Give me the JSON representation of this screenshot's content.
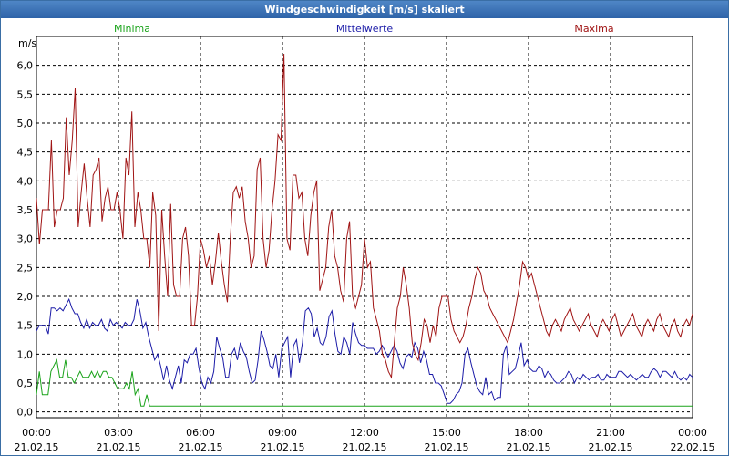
{
  "window": {
    "title": "Windgeschwindigkeit [m/s] skaliert"
  },
  "colors": {
    "minima": "#1aa31a",
    "mittelwerte": "#1c1ca8",
    "maxima": "#a01414",
    "grid": "#000000"
  },
  "chart_data": {
    "type": "line",
    "title": "Windgeschwindigkeit [m/s] skaliert",
    "ylabel": "m/s",
    "xlabel": "",
    "ylim": [
      -0.1,
      6.5
    ],
    "xlim": [
      0,
      24
    ],
    "yticks": [
      "0,0",
      "0,5",
      "1,0",
      "1,5",
      "2,0",
      "2,5",
      "3,0",
      "3,5",
      "4,0",
      "4,5",
      "5,0",
      "5,5",
      "6,0"
    ],
    "xticks": [
      {
        "time": "00:00",
        "date": "21.02.15"
      },
      {
        "time": "03:00",
        "date": "21.02.15"
      },
      {
        "time": "06:00",
        "date": "21.02.15"
      },
      {
        "time": "09:00",
        "date": "21.02.15"
      },
      {
        "time": "12:00",
        "date": "21.02.15"
      },
      {
        "time": "15:00",
        "date": "21.02.15"
      },
      {
        "time": "18:00",
        "date": "21.02.15"
      },
      {
        "time": "21:00",
        "date": "21.02.15"
      },
      {
        "time": "00:00",
        "date": "22.02.15"
      }
    ],
    "grid": true,
    "series": [
      {
        "name": "Minima",
        "key": "minima",
        "legend_pos": "left",
        "values": [
          0.3,
          0.7,
          0.3,
          0.3,
          0.3,
          0.7,
          0.8,
          0.9,
          0.6,
          0.6,
          0.9,
          0.6,
          0.6,
          0.5,
          0.6,
          0.7,
          0.6,
          0.6,
          0.6,
          0.7,
          0.6,
          0.7,
          0.6,
          0.7,
          0.7,
          0.6,
          0.6,
          0.5,
          0.4,
          0.4,
          0.4,
          0.5,
          0.4,
          0.7,
          0.3,
          0.4,
          0.1,
          0.1,
          0.3,
          0.1,
          0.1,
          0.1,
          0.1,
          0.1,
          0.1,
          0.1,
          0.1,
          0.1,
          0.1,
          0.1,
          0.1,
          0.1,
          0.1,
          0.1,
          0.1,
          0.1,
          0.1,
          0.1,
          0.1,
          0.1,
          0.1,
          0.1,
          0.1,
          0.1,
          0.1,
          0.1,
          0.1,
          0.1,
          0.1,
          0.1,
          0.1,
          0.1,
          0.1,
          0.1,
          0.1,
          0.1,
          0.1,
          0.1,
          0.1,
          0.1,
          0.1,
          0.1,
          0.1,
          0.1,
          0.1,
          0.1,
          0.1,
          0.1,
          0.1,
          0.1,
          0.1,
          0.1,
          0.1,
          0.1,
          0.1,
          0.1,
          0.1,
          0.1,
          0.1,
          0.1,
          0.1,
          0.1,
          0.1,
          0.1,
          0.1,
          0.1,
          0.1,
          0.1,
          0.1,
          0.1,
          0.1,
          0.1,
          0.1,
          0.1,
          0.1,
          0.1,
          0.1,
          0.1,
          0.1,
          0.1,
          0.1,
          0.1,
          0.1,
          0.1,
          0.1,
          0.1,
          0.1,
          0.1,
          0.1,
          0.1,
          0.1,
          0.1,
          0.1,
          0.1,
          0.1,
          0.1,
          0.1,
          0.1,
          0.1,
          0.1,
          0.1,
          0.1,
          0.1,
          0.1,
          0.1,
          0.1,
          0.1,
          0.1,
          0.1,
          0.1,
          0.1,
          0.1,
          0.1,
          0.1,
          0.1,
          0.1,
          0.1,
          0.1,
          0.1,
          0.1,
          0.1,
          0.1,
          0.1,
          0.1,
          0.1,
          0.1,
          0.1,
          0.1,
          0.1,
          0.1,
          0.1,
          0.1,
          0.1,
          0.1,
          0.1,
          0.1,
          0.1,
          0.1,
          0.1,
          0.1,
          0.1,
          0.1,
          0.1,
          0.1,
          0.1,
          0.1,
          0.1,
          0.1,
          0.1,
          0.1,
          0.1,
          0.1,
          0.1,
          0.1,
          0.1,
          0.1,
          0.1,
          0.1,
          0.1,
          0.1,
          0.1,
          0.1,
          0.1,
          0.1,
          0.1,
          0.1,
          0.1,
          0.1,
          0.1,
          0.1,
          0.1,
          0.1,
          0.1,
          0.1,
          0.1,
          0.1,
          0.1,
          0.1,
          0.1,
          0.1,
          0.1,
          0.1,
          0.1,
          0.1,
          0.1,
          0.1,
          0.1
        ]
      },
      {
        "name": "Mittelwerte",
        "key": "mittelwerte",
        "legend_pos": "center",
        "values": [
          1.4,
          1.5,
          1.5,
          1.5,
          1.35,
          1.8,
          1.8,
          1.75,
          1.8,
          1.75,
          1.85,
          1.95,
          1.8,
          1.7,
          1.7,
          1.55,
          1.45,
          1.6,
          1.45,
          1.55,
          1.5,
          1.5,
          1.6,
          1.45,
          1.4,
          1.6,
          1.5,
          1.55,
          1.5,
          1.45,
          1.55,
          1.5,
          1.5,
          1.6,
          1.95,
          1.75,
          1.45,
          1.55,
          1.3,
          1.1,
          0.9,
          1.0,
          0.8,
          0.55,
          0.8,
          0.55,
          0.4,
          0.6,
          0.8,
          0.5,
          0.9,
          0.85,
          1.0,
          1.0,
          1.1,
          0.75,
          0.5,
          0.4,
          0.6,
          0.5,
          0.7,
          1.3,
          1.1,
          0.95,
          0.6,
          0.6,
          1.0,
          1.1,
          0.9,
          1.2,
          1.05,
          0.95,
          0.7,
          0.5,
          0.55,
          0.9,
          1.4,
          1.25,
          1.05,
          0.8,
          0.75,
          1.0,
          0.6,
          1.1,
          1.2,
          1.3,
          0.6,
          1.15,
          1.25,
          0.85,
          1.2,
          1.75,
          1.8,
          1.7,
          1.3,
          1.45,
          1.2,
          1.15,
          1.3,
          1.65,
          1.75,
          1.35,
          1.05,
          1.0,
          1.3,
          1.2,
          1.0,
          1.55,
          1.35,
          1.2,
          1.15,
          1.15,
          1.1,
          1.1,
          1.1,
          1.0,
          1.05,
          1.15,
          1.05,
          0.95,
          1.05,
          1.15,
          1.05,
          0.85,
          0.75,
          0.95,
          1.0,
          0.95,
          1.2,
          1.1,
          0.85,
          1.05,
          0.9,
          0.65,
          0.65,
          0.5,
          0.5,
          0.45,
          0.3,
          0.15,
          0.15,
          0.2,
          0.3,
          0.35,
          0.5,
          1.0,
          1.1,
          0.85,
          0.65,
          0.45,
          0.35,
          0.3,
          0.6,
          0.3,
          0.35,
          0.2,
          0.25,
          0.25,
          1.0,
          1.15,
          0.65,
          0.7,
          0.75,
          0.95,
          1.2,
          0.8,
          0.9,
          0.75,
          0.7,
          0.7,
          0.8,
          0.75,
          0.6,
          0.7,
          0.65,
          0.55,
          0.5,
          0.5,
          0.55,
          0.6,
          0.7,
          0.65,
          0.5,
          0.6,
          0.55,
          0.65,
          0.6,
          0.55,
          0.6,
          0.6,
          0.65,
          0.55,
          0.55,
          0.65,
          0.6,
          0.6,
          0.6,
          0.7,
          0.7,
          0.65,
          0.6,
          0.65,
          0.6,
          0.55,
          0.6,
          0.65,
          0.6,
          0.6,
          0.7,
          0.75,
          0.7,
          0.6,
          0.7,
          0.7,
          0.65,
          0.6,
          0.7,
          0.6,
          0.55,
          0.6,
          0.55,
          0.65,
          0.6
        ]
      },
      {
        "name": "Maxima",
        "key": "maxima",
        "legend_pos": "right",
        "values": [
          3.7,
          2.9,
          3.5,
          3.5,
          3.5,
          4.7,
          3.2,
          3.5,
          3.5,
          3.7,
          5.1,
          4.1,
          4.7,
          5.6,
          3.2,
          3.8,
          4.3,
          3.7,
          3.2,
          4.1,
          4.2,
          4.4,
          3.3,
          3.7,
          3.9,
          3.5,
          3.5,
          3.8,
          3.5,
          3.0,
          4.4,
          4.1,
          5.2,
          3.2,
          3.8,
          3.5,
          3.0,
          3.0,
          2.5,
          3.8,
          3.4,
          1.4,
          3.5,
          2.7,
          2.0,
          3.6,
          2.2,
          2.0,
          2.0,
          3.0,
          3.2,
          2.7,
          1.5,
          1.5,
          2.0,
          3.0,
          2.8,
          2.5,
          2.7,
          2.2,
          2.6,
          3.1,
          2.6,
          2.2,
          1.9,
          3.0,
          3.8,
          3.9,
          3.7,
          3.9,
          3.3,
          3.0,
          2.5,
          2.7,
          4.2,
          4.4,
          3.0,
          2.5,
          2.8,
          3.5,
          4.0,
          4.8,
          4.7,
          6.2,
          3.0,
          2.8,
          4.1,
          4.1,
          3.7,
          3.8,
          3.0,
          2.7,
          3.4,
          3.8,
          4.0,
          2.1,
          2.3,
          2.5,
          3.2,
          3.5,
          2.7,
          2.5,
          2.1,
          1.9,
          3.0,
          3.3,
          2.0,
          1.8,
          2.0,
          2.2,
          3.0,
          2.5,
          2.6,
          1.8,
          1.6,
          1.4,
          1.0,
          0.9,
          0.7,
          0.6,
          1.2,
          1.8,
          2.0,
          2.5,
          2.2,
          1.8,
          1.2,
          1.0,
          0.9,
          1.2,
          1.6,
          1.5,
          1.2,
          1.5,
          1.3,
          1.8,
          2.0,
          2.0,
          2.0,
          1.6,
          1.4,
          1.3,
          1.2,
          1.3,
          1.5,
          1.8,
          2.0,
          2.3,
          2.5,
          2.4,
          2.1,
          2.0,
          1.8,
          1.7,
          1.6,
          1.5,
          1.4,
          1.3,
          1.2,
          1.4,
          1.6,
          1.9,
          2.2,
          2.6,
          2.5,
          2.3,
          2.4,
          2.2,
          2.0,
          1.8,
          1.6,
          1.4,
          1.3,
          1.5,
          1.6,
          1.5,
          1.4,
          1.6,
          1.7,
          1.8,
          1.6,
          1.5,
          1.4,
          1.5,
          1.6,
          1.7,
          1.5,
          1.4,
          1.3,
          1.5,
          1.6,
          1.5,
          1.4,
          1.6,
          1.7,
          1.5,
          1.3,
          1.4,
          1.5,
          1.6,
          1.7,
          1.5,
          1.4,
          1.3,
          1.5,
          1.6,
          1.5,
          1.4,
          1.6,
          1.7,
          1.5,
          1.4,
          1.3,
          1.5,
          1.6,
          1.4,
          1.3,
          1.5,
          1.6,
          1.5,
          1.7
        ]
      }
    ]
  }
}
